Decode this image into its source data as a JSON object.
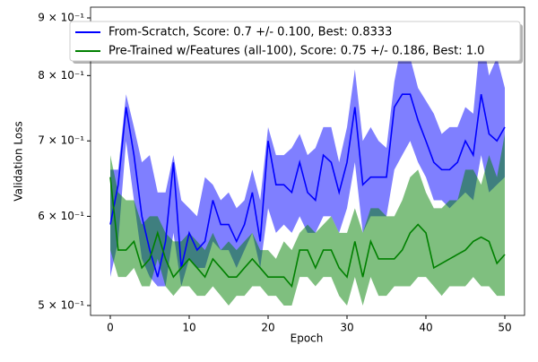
{
  "chart_data": {
    "type": "line",
    "xlabel": "Epoch",
    "ylabel": "Validation Loss",
    "x": [
      0,
      1,
      2,
      3,
      4,
      5,
      6,
      7,
      8,
      9,
      10,
      11,
      12,
      13,
      14,
      15,
      16,
      17,
      18,
      19,
      20,
      21,
      22,
      23,
      24,
      25,
      26,
      27,
      28,
      29,
      30,
      31,
      32,
      33,
      34,
      35,
      36,
      37,
      38,
      39,
      40,
      41,
      42,
      43,
      44,
      45,
      46,
      47,
      48,
      49,
      50
    ],
    "xlim": [
      -2.5,
      52.5
    ],
    "xticks": [
      0,
      10,
      20,
      30,
      40,
      50
    ],
    "ylim": [
      0.49,
      0.92
    ],
    "log_y": true,
    "yticks": [
      {
        "value": 0.5,
        "label": "5 × 10⁻¹"
      },
      {
        "value": 0.6,
        "label": "6 × 10⁻¹"
      },
      {
        "value": 0.7,
        "label": "7 × 10⁻¹"
      },
      {
        "value": 0.8,
        "label": "8 × 10⁻¹"
      },
      {
        "value": 0.9,
        "label": "9 × 10⁻¹"
      }
    ],
    "legend": "upper left",
    "series": [
      {
        "name": "From-Scratch, Score: 0.7 +/- 0.100,  Best: 0.8333",
        "color": "#0000ff",
        "values": [
          0.59,
          0.64,
          0.75,
          0.68,
          0.6,
          0.56,
          0.53,
          0.57,
          0.67,
          0.54,
          0.58,
          0.56,
          0.57,
          0.62,
          0.59,
          0.59,
          0.57,
          0.59,
          0.63,
          0.57,
          0.7,
          0.64,
          0.64,
          0.63,
          0.67,
          0.63,
          0.62,
          0.68,
          0.67,
          0.63,
          0.67,
          0.75,
          0.64,
          0.65,
          0.65,
          0.65,
          0.75,
          0.77,
          0.77,
          0.73,
          0.7,
          0.67,
          0.66,
          0.66,
          0.67,
          0.7,
          0.68,
          0.77,
          0.71,
          0.7,
          0.72
        ],
        "upper": [
          0.66,
          0.66,
          0.77,
          0.72,
          0.67,
          0.68,
          0.63,
          0.63,
          0.68,
          0.62,
          0.61,
          0.6,
          0.65,
          0.64,
          0.62,
          0.63,
          0.61,
          0.62,
          0.66,
          0.62,
          0.72,
          0.68,
          0.68,
          0.69,
          0.71,
          0.68,
          0.69,
          0.72,
          0.72,
          0.67,
          0.72,
          0.81,
          0.7,
          0.72,
          0.7,
          0.69,
          0.79,
          0.86,
          0.83,
          0.78,
          0.76,
          0.74,
          0.71,
          0.72,
          0.72,
          0.75,
          0.74,
          0.88,
          0.8,
          0.83,
          0.78
        ],
        "lower": [
          0.53,
          0.57,
          0.7,
          0.62,
          0.55,
          0.53,
          0.52,
          0.52,
          0.58,
          0.52,
          0.55,
          0.54,
          0.54,
          0.57,
          0.56,
          0.56,
          0.54,
          0.56,
          0.58,
          0.54,
          0.61,
          0.58,
          0.59,
          0.58,
          0.6,
          0.58,
          0.58,
          0.6,
          0.6,
          0.58,
          0.61,
          0.67,
          0.58,
          0.6,
          0.6,
          0.6,
          0.66,
          0.68,
          0.7,
          0.67,
          0.65,
          0.62,
          0.62,
          0.61,
          0.62,
          0.63,
          0.62,
          0.68,
          0.63,
          0.64,
          0.65
        ]
      },
      {
        "name": "Pre-Trained w/Features (all-100), Score: 0.75 +/- 0.186,  Best: 1.0",
        "color": "#008000",
        "values": [
          0.65,
          0.56,
          0.56,
          0.57,
          0.54,
          0.55,
          0.58,
          0.55,
          0.53,
          0.54,
          0.55,
          0.54,
          0.53,
          0.55,
          0.54,
          0.53,
          0.53,
          0.54,
          0.55,
          0.54,
          0.53,
          0.53,
          0.53,
          0.52,
          0.56,
          0.56,
          0.54,
          0.56,
          0.56,
          0.54,
          0.53,
          0.57,
          0.53,
          0.57,
          0.55,
          0.55,
          0.55,
          0.56,
          0.58,
          0.59,
          0.58,
          0.54,
          0.545,
          0.55,
          0.555,
          0.56,
          0.57,
          0.575,
          0.57,
          0.545,
          0.555
        ],
        "upper": [
          0.68,
          0.63,
          0.62,
          0.62,
          0.59,
          0.6,
          0.6,
          0.58,
          0.57,
          0.57,
          0.58,
          0.57,
          0.56,
          0.58,
          0.56,
          0.57,
          0.56,
          0.57,
          0.58,
          0.56,
          0.56,
          0.55,
          0.57,
          0.56,
          0.58,
          0.59,
          0.58,
          0.59,
          0.6,
          0.58,
          0.58,
          0.61,
          0.58,
          0.61,
          0.61,
          0.6,
          0.6,
          0.62,
          0.65,
          0.66,
          0.63,
          0.61,
          0.61,
          0.62,
          0.62,
          0.66,
          0.66,
          0.64,
          0.68,
          0.65,
          0.71
        ],
        "lower": [
          0.56,
          0.53,
          0.53,
          0.54,
          0.52,
          0.52,
          0.55,
          0.52,
          0.51,
          0.52,
          0.52,
          0.51,
          0.51,
          0.52,
          0.51,
          0.5,
          0.51,
          0.51,
          0.52,
          0.52,
          0.51,
          0.51,
          0.5,
          0.5,
          0.53,
          0.53,
          0.52,
          0.53,
          0.53,
          0.51,
          0.5,
          0.53,
          0.5,
          0.53,
          0.51,
          0.51,
          0.52,
          0.52,
          0.52,
          0.53,
          0.53,
          0.52,
          0.51,
          0.52,
          0.52,
          0.52,
          0.53,
          0.52,
          0.52,
          0.51,
          0.51
        ]
      }
    ]
  }
}
